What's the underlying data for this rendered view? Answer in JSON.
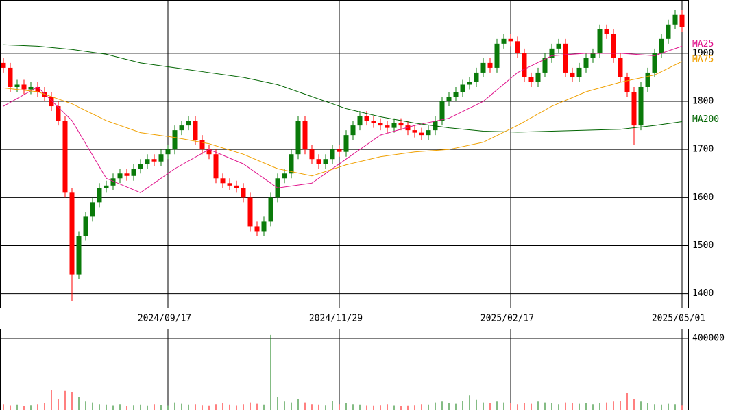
{
  "chart_data": {
    "type": "candlestick",
    "xticks": [
      {
        "value": 24,
        "label": "2024/09/17"
      },
      {
        "value": 49,
        "label": "2024/11/29"
      },
      {
        "value": 74,
        "label": "2025/02/17"
      },
      {
        "value": 99,
        "label": "2025/05/01"
      }
    ],
    "ylim": [
      1371,
      2011
    ],
    "yticks": [
      1400,
      1500,
      1600,
      1700,
      1800,
      1900
    ],
    "up_color": "#0a7a0a",
    "down_color": "#ff0000",
    "grid": true,
    "open": [
      1880,
      1870,
      1830,
      1835,
      1825,
      1830,
      1820,
      1810,
      1790,
      1760,
      1610,
      1440,
      1520,
      1560,
      1590,
      1620,
      1625,
      1640,
      1650,
      1645,
      1660,
      1670,
      1680,
      1675,
      1690,
      1700,
      1740,
      1750,
      1760,
      1720,
      1700,
      1690,
      1640,
      1630,
      1625,
      1620,
      1600,
      1540,
      1530,
      1550,
      1600,
      1640,
      1650,
      1690,
      1760,
      1700,
      1680,
      1670,
      1680,
      1700,
      1695,
      1730,
      1750,
      1770,
      1760,
      1755,
      1750,
      1745,
      1755,
      1750,
      1740,
      1735,
      1730,
      1740,
      1760,
      1800,
      1810,
      1820,
      1835,
      1840,
      1860,
      1880,
      1870,
      1920,
      1930,
      1925,
      1900,
      1850,
      1840,
      1860,
      1890,
      1910,
      1920,
      1860,
      1850,
      1870,
      1890,
      1900,
      1950,
      1940,
      1890,
      1850,
      1820,
      1750,
      1830,
      1860,
      1900,
      1930,
      1960,
      1980
    ],
    "high": [
      1890,
      1880,
      1845,
      1845,
      1840,
      1840,
      1830,
      1820,
      1800,
      1770,
      1620,
      1530,
      1570,
      1600,
      1630,
      1635,
      1650,
      1660,
      1660,
      1670,
      1680,
      1690,
      1690,
      1700,
      1710,
      1750,
      1760,
      1770,
      1770,
      1730,
      1710,
      1700,
      1650,
      1640,
      1635,
      1630,
      1610,
      1550,
      1560,
      1610,
      1650,
      1660,
      1700,
      1770,
      1770,
      1710,
      1690,
      1690,
      1710,
      1710,
      1740,
      1760,
      1780,
      1780,
      1770,
      1765,
      1760,
      1765,
      1765,
      1760,
      1750,
      1745,
      1750,
      1770,
      1810,
      1820,
      1830,
      1845,
      1850,
      1870,
      1890,
      1890,
      1930,
      1940,
      1940,
      1935,
      1910,
      1860,
      1870,
      1900,
      1920,
      1930,
      1930,
      1870,
      1880,
      1900,
      1910,
      1960,
      1960,
      1950,
      1900,
      1860,
      1830,
      1840,
      1870,
      1910,
      1940,
      1970,
      1990,
      1990
    ],
    "low": [
      1860,
      1820,
      1820,
      1815,
      1815,
      1810,
      1800,
      1780,
      1750,
      1600,
      1385,
      1430,
      1510,
      1550,
      1580,
      1610,
      1615,
      1630,
      1635,
      1635,
      1650,
      1660,
      1665,
      1665,
      1680,
      1690,
      1730,
      1740,
      1710,
      1690,
      1680,
      1630,
      1620,
      1615,
      1610,
      1590,
      1530,
      1520,
      1520,
      1540,
      1590,
      1630,
      1640,
      1680,
      1690,
      1670,
      1660,
      1660,
      1670,
      1685,
      1685,
      1720,
      1740,
      1750,
      1745,
      1740,
      1735,
      1735,
      1740,
      1730,
      1725,
      1720,
      1720,
      1730,
      1750,
      1790,
      1800,
      1810,
      1825,
      1830,
      1850,
      1860,
      1860,
      1910,
      1915,
      1890,
      1840,
      1830,
      1830,
      1850,
      1880,
      1900,
      1850,
      1840,
      1840,
      1860,
      1880,
      1890,
      1930,
      1880,
      1840,
      1810,
      1710,
      1740,
      1820,
      1850,
      1890,
      1920,
      1950,
      1945
    ],
    "close": [
      1870,
      1830,
      1835,
      1825,
      1830,
      1820,
      1810,
      1790,
      1760,
      1610,
      1440,
      1520,
      1560,
      1590,
      1620,
      1625,
      1640,
      1650,
      1645,
      1660,
      1670,
      1680,
      1675,
      1690,
      1700,
      1740,
      1750,
      1760,
      1720,
      1700,
      1690,
      1640,
      1630,
      1625,
      1620,
      1600,
      1540,
      1530,
      1550,
      1600,
      1640,
      1650,
      1690,
      1760,
      1700,
      1680,
      1670,
      1680,
      1700,
      1695,
      1730,
      1750,
      1770,
      1760,
      1755,
      1750,
      1745,
      1755,
      1750,
      1740,
      1735,
      1730,
      1740,
      1760,
      1800,
      1810,
      1820,
      1835,
      1840,
      1860,
      1880,
      1870,
      1920,
      1930,
      1925,
      1900,
      1850,
      1840,
      1860,
      1890,
      1910,
      1920,
      1860,
      1850,
      1870,
      1890,
      1900,
      1950,
      1940,
      1890,
      1850,
      1820,
      1750,
      1830,
      1860,
      1900,
      1930,
      1960,
      1980,
      1955
    ],
    "moving_averages": [
      {
        "name": "MA25",
        "color": "#e0148c",
        "x": [
          0,
          5,
          10,
          15,
          20,
          25,
          30,
          35,
          40,
          45,
          50,
          55,
          60,
          65,
          70,
          75,
          80,
          85,
          90,
          95,
          99
        ],
        "values": [
          1790,
          1830,
          1760,
          1640,
          1610,
          1660,
          1700,
          1670,
          1620,
          1630,
          1680,
          1730,
          1750,
          1765,
          1800,
          1860,
          1895,
          1900,
          1900,
          1895,
          1915
        ]
      },
      {
        "name": "MA75",
        "color": "#f0a000",
        "x": [
          0,
          5,
          10,
          15,
          20,
          25,
          30,
          35,
          40,
          45,
          50,
          55,
          60,
          65,
          70,
          75,
          80,
          85,
          90,
          95,
          99
        ],
        "values": [
          1828,
          1820,
          1795,
          1760,
          1735,
          1725,
          1712,
          1690,
          1660,
          1645,
          1668,
          1685,
          1695,
          1700,
          1715,
          1750,
          1790,
          1820,
          1840,
          1855,
          1883
        ]
      },
      {
        "name": "MA200",
        "color": "#006400",
        "x": [
          0,
          5,
          10,
          15,
          20,
          25,
          30,
          35,
          40,
          45,
          50,
          55,
          60,
          65,
          70,
          75,
          80,
          85,
          90,
          95,
          99
        ],
        "values": [
          1918,
          1915,
          1908,
          1898,
          1880,
          1870,
          1860,
          1850,
          1835,
          1810,
          1785,
          1768,
          1755,
          1745,
          1738,
          1736,
          1738,
          1740,
          1742,
          1750,
          1758
        ]
      }
    ],
    "volume": {
      "ylim": [
        0,
        454000
      ],
      "yticks": [
        400000
      ],
      "color_up": "#0a7a0a",
      "color_down": "#ff0000",
      "values": [
        30000,
        25000,
        28000,
        22000,
        26000,
        30000,
        35000,
        110000,
        60000,
        105000,
        100000,
        70000,
        45000,
        40000,
        30000,
        28000,
        25000,
        30000,
        22000,
        26000,
        28000,
        24000,
        30000,
        27000,
        25000,
        40000,
        32000,
        28000,
        30000,
        26000,
        24000,
        30000,
        35000,
        28000,
        25000,
        30000,
        40000,
        32000,
        28000,
        420000,
        70000,
        45000,
        40000,
        60000,
        40000,
        30000,
        28000,
        26000,
        50000,
        30000,
        35000,
        30000,
        28000,
        25000,
        24000,
        26000,
        30000,
        25000,
        22000,
        24000,
        26000,
        30000,
        28000,
        40000,
        45000,
        35000,
        32000,
        50000,
        80000,
        55000,
        40000,
        35000,
        45000,
        40000,
        35000,
        30000,
        38000,
        32000,
        45000,
        40000,
        35000,
        30000,
        40000,
        35000,
        32000,
        38000,
        30000,
        35000,
        40000,
        45000,
        50000,
        95000,
        60000,
        45000,
        35000,
        30000,
        28000,
        32000,
        30000,
        26000
      ]
    }
  }
}
